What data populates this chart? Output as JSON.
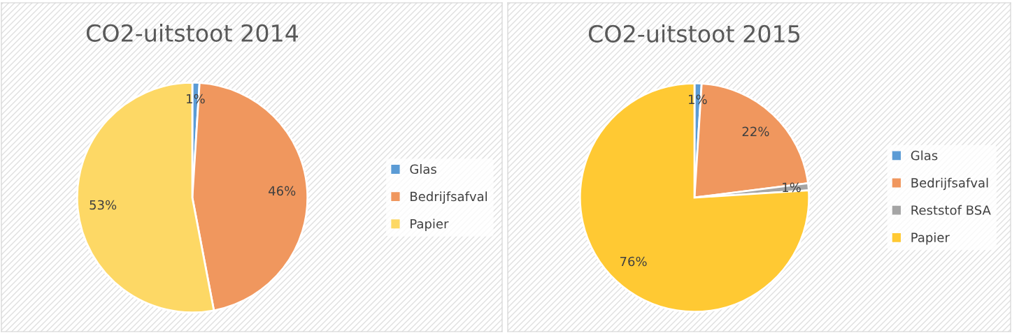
{
  "chart_data": [
    {
      "type": "pie",
      "title": "CO2-uitstoot 2014",
      "categories": [
        "Glas",
        "Bedrijfsafval",
        "Papier"
      ],
      "values": [
        1,
        46,
        53
      ],
      "colors": [
        "#5b9bd5",
        "#f0975e",
        "#fdd865"
      ],
      "value_labels": [
        "1%",
        "46%",
        "53%"
      ],
      "legend": "right"
    },
    {
      "type": "pie",
      "title": "CO2-uitstoot 2015",
      "categories": [
        "Glas",
        "Bedrijfsafval",
        "Reststof BSA",
        "Papier"
      ],
      "values": [
        1,
        22,
        1,
        76
      ],
      "colors": [
        "#5b9bd5",
        "#f0975e",
        "#a5a5a5",
        "#ffc933"
      ],
      "value_labels": [
        "1%",
        "22%",
        "1%",
        "76%"
      ],
      "legend": "right"
    }
  ]
}
